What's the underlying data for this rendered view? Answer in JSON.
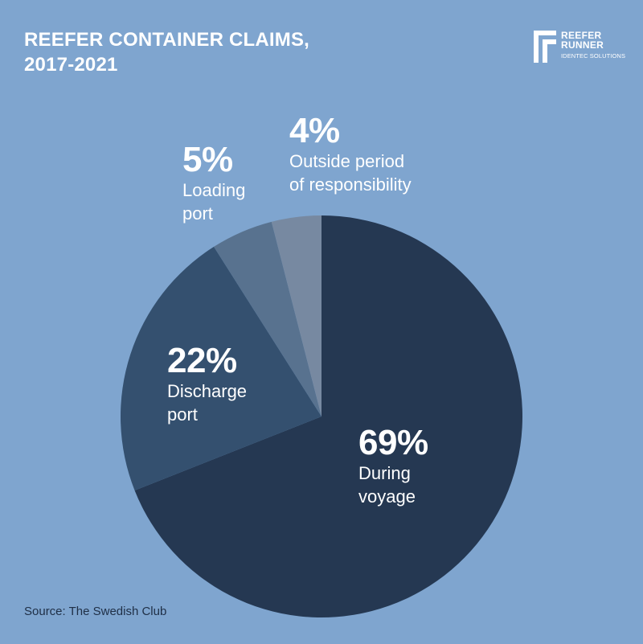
{
  "title_lines": [
    "REEFER CONTAINER CLAIMS,",
    "2017-2021"
  ],
  "logo": {
    "line1": "REEFER",
    "line2": "RUNNER",
    "line3": "IDENTEC SOLUTIONS"
  },
  "source": "Source: The Swedish Club",
  "colors": {
    "background": "#7fa5cf",
    "slices": [
      "#253852",
      "#34506f",
      "#58728f",
      "#7789a1"
    ]
  },
  "chart_data": {
    "type": "pie",
    "title": "REEFER CONTAINER CLAIMS, 2017-2021",
    "slices": [
      {
        "label": "During voyage",
        "value": 69,
        "display": "69%",
        "label_lines": [
          "During",
          "voyage"
        ]
      },
      {
        "label": "Discharge port",
        "value": 22,
        "display": "22%",
        "label_lines": [
          "Discharge",
          "port"
        ]
      },
      {
        "label": "Loading port",
        "value": 5,
        "display": "5%",
        "label_lines": [
          "Loading",
          "port"
        ]
      },
      {
        "label": "Outside period of responsibility",
        "value": 4,
        "display": "4%",
        "label_lines": [
          "Outside period",
          "of responsibility"
        ]
      }
    ],
    "start_angle": "12 o'clock",
    "direction": "clockwise",
    "legend": "none",
    "source": "The Swedish Club"
  }
}
